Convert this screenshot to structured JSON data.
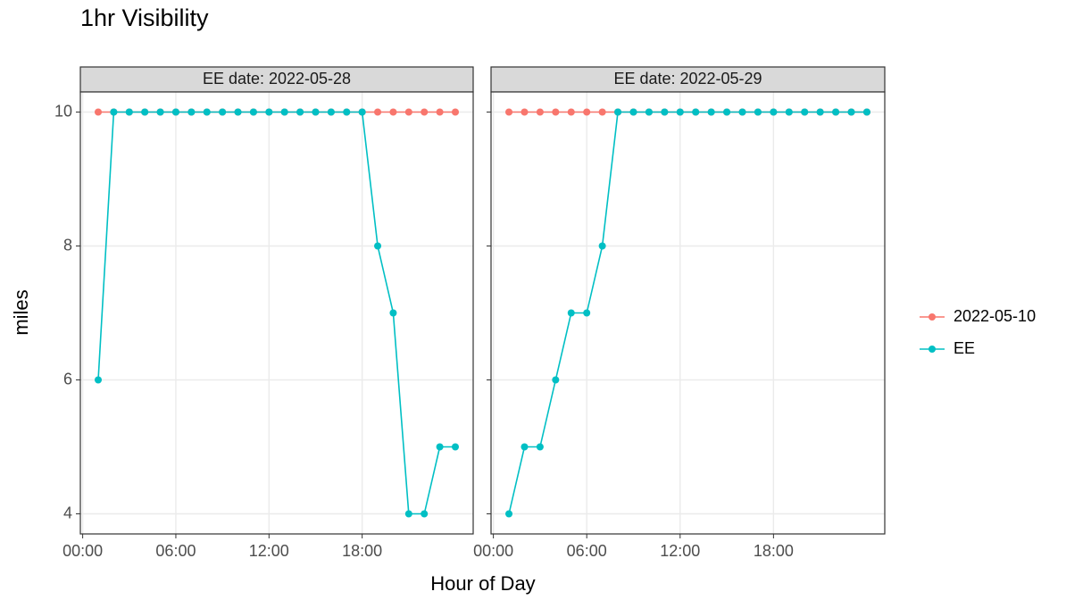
{
  "title": "1hr Visibility",
  "x_label": "Hour of Day",
  "y_label": "miles",
  "chart_data": [
    {
      "type": "line",
      "strip": "EE date: 2022-05-28",
      "x": [
        1,
        2,
        3,
        4,
        5,
        6,
        7,
        8,
        9,
        10,
        11,
        12,
        13,
        14,
        15,
        16,
        17,
        18,
        19,
        20,
        21,
        22,
        23,
        24
      ],
      "series": [
        {
          "name": "2022-05-10",
          "color": "#F8766D",
          "values": [
            10,
            10,
            10,
            10,
            10,
            10,
            10,
            10,
            10,
            10,
            10,
            10,
            10,
            10,
            10,
            10,
            10,
            10,
            10,
            10,
            10,
            10,
            10,
            10
          ]
        },
        {
          "name": "EE",
          "color": "#00BFC4",
          "values": [
            6,
            10,
            10,
            10,
            10,
            10,
            10,
            10,
            10,
            10,
            10,
            10,
            10,
            10,
            10,
            10,
            10,
            10,
            8,
            7,
            4,
            4,
            5,
            5
          ]
        }
      ],
      "xlim": [
        -0.15,
        25.15
      ],
      "ylim": [
        3.7,
        10.3
      ],
      "xticks": [
        {
          "value": 0,
          "label": "00:00"
        },
        {
          "value": 6,
          "label": "06:00"
        },
        {
          "value": 12,
          "label": "12:00"
        },
        {
          "value": 18,
          "label": "18:00"
        }
      ],
      "yticks": [
        4,
        6,
        8,
        10
      ],
      "grid": true
    },
    {
      "type": "line",
      "strip": "EE date: 2022-05-29",
      "x": [
        1,
        2,
        3,
        4,
        5,
        6,
        7,
        8,
        9,
        10,
        11,
        12,
        13,
        14,
        15,
        16,
        17,
        18,
        19,
        20,
        21,
        22,
        23,
        24
      ],
      "series": [
        {
          "name": "2022-05-10",
          "color": "#F8766D",
          "values": [
            10,
            10,
            10,
            10,
            10,
            10,
            10,
            10,
            10,
            10,
            10,
            10,
            10,
            10,
            10,
            10,
            10,
            10,
            10,
            10,
            10,
            10,
            10,
            10
          ]
        },
        {
          "name": "EE",
          "color": "#00BFC4",
          "values": [
            4,
            5,
            5,
            6,
            7,
            7,
            8,
            10,
            10,
            10,
            10,
            10,
            10,
            10,
            10,
            10,
            10,
            10,
            10,
            10,
            10,
            10,
            10,
            10
          ]
        }
      ],
      "xlim": [
        -0.15,
        25.15
      ],
      "ylim": [
        3.7,
        10.3
      ],
      "xticks": [
        {
          "value": 0,
          "label": "00:00"
        },
        {
          "value": 6,
          "label": "06:00"
        },
        {
          "value": 12,
          "label": "12:00"
        },
        {
          "value": 18,
          "label": "18:00"
        }
      ],
      "yticks": [
        4,
        6,
        8,
        10
      ],
      "grid": true
    }
  ]
}
